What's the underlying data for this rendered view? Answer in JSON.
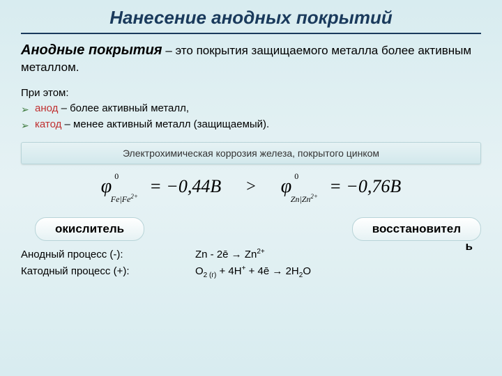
{
  "header": {
    "title": "Нанесение анодных покрытий"
  },
  "definition": {
    "term": "Анодные покрытия",
    "text": " – это покрытия защищаемого металла более активным металлом."
  },
  "bullets": {
    "intro": "При этом:",
    "item1_red": "анод",
    "item1_rest": " – более активный металл,",
    "item2_red": "катод",
    "item2_rest": " – менее активный металл (защищаемый)."
  },
  "subheader": "Электрохимическая коррозия железа, покрытого цинком",
  "formula": {
    "left_sub": "Fe|Fe",
    "left_val": "= −0,44",
    "right_sub": "Zn|Zn",
    "right_val": "= −0,76",
    "unit": "B",
    "sup": "0",
    "ion": "2+",
    "gt": ">"
  },
  "pills": {
    "left": "окислитель",
    "right": "восстановител",
    "right_overflow": "ь"
  },
  "process": {
    "anodic_label": "Анодный процесс (-):",
    "cathodic_label": "Катодный процесс (+):",
    "anodic_eq_pre": "Zn - 2ē → Zn",
    "anodic_eq_sup": "2+",
    "cathodic_o": "O",
    "cathodic_2g": "2 (г)",
    "cathodic_mid": " + 4H",
    "cathodic_hplus": "+",
    "cathodic_e": " + 4ē → 2H",
    "cathodic_2": "2",
    "cathodic_end": "O"
  }
}
